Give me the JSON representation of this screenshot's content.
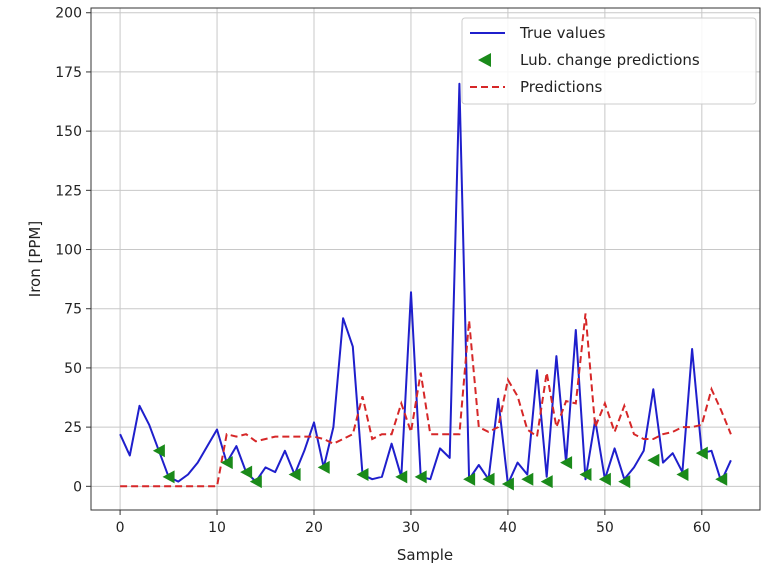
{
  "chart_data": {
    "type": "line",
    "title": "",
    "xlabel": "Sample",
    "ylabel": "Iron [PPM]",
    "xlim": [
      -3,
      66
    ],
    "ylim": [
      -10,
      202
    ],
    "xticks": [
      0,
      10,
      20,
      30,
      40,
      50,
      60
    ],
    "yticks": [
      0,
      25,
      50,
      75,
      100,
      125,
      150,
      175,
      200
    ],
    "grid": true,
    "legend_position": "top-right",
    "series": [
      {
        "name": "True values",
        "style": "solid",
        "color": "#1f1fcc",
        "x": [
          0,
          1,
          2,
          3,
          4,
          5,
          6,
          7,
          8,
          9,
          10,
          11,
          12,
          13,
          14,
          15,
          16,
          17,
          18,
          19,
          20,
          21,
          22,
          23,
          24,
          25,
          26,
          27,
          28,
          29,
          30,
          31,
          32,
          33,
          34,
          35,
          36,
          37,
          38,
          39,
          40,
          41,
          42,
          43,
          44,
          45,
          46,
          47,
          48,
          49,
          50,
          51,
          52,
          53,
          54,
          55,
          56,
          57,
          58,
          59,
          60,
          61,
          62,
          63
        ],
        "values": [
          22,
          13,
          34,
          26,
          15,
          4,
          2,
          5,
          10,
          17,
          24,
          10,
          17,
          6,
          2,
          8,
          6,
          15,
          5,
          15,
          27,
          8,
          25,
          71,
          59,
          5,
          3,
          4,
          18,
          4,
          82,
          4,
          3,
          16,
          12,
          170,
          3,
          9,
          3,
          37,
          1,
          10,
          5,
          49,
          4,
          55,
          10,
          66,
          3,
          28,
          3,
          16,
          3,
          8,
          15,
          41,
          10,
          14,
          6,
          58,
          14,
          15,
          2,
          11
        ]
      },
      {
        "name": "Lub. change predictions",
        "style": "marker",
        "color": "#1a8a1a",
        "x": [
          4,
          5,
          11,
          13,
          14,
          18,
          21,
          25,
          29,
          31,
          36,
          38,
          40,
          42,
          44,
          46,
          48,
          50,
          52,
          55,
          58,
          60,
          62
        ],
        "values": [
          15,
          4,
          10,
          6,
          2,
          5,
          8,
          5,
          4,
          4,
          3,
          3,
          1,
          3,
          2,
          10,
          5,
          3,
          2,
          11,
          5,
          14,
          3
        ]
      },
      {
        "name": "Predictions",
        "style": "dashed",
        "color": "#d62728",
        "x": [
          0,
          1,
          2,
          3,
          4,
          5,
          6,
          7,
          8,
          9,
          10,
          11,
          12,
          13,
          14,
          15,
          16,
          17,
          18,
          19,
          20,
          21,
          22,
          23,
          24,
          25,
          26,
          27,
          28,
          29,
          30,
          31,
          32,
          33,
          34,
          35,
          36,
          37,
          38,
          39,
          40,
          41,
          42,
          43,
          44,
          45,
          46,
          47,
          48,
          49,
          50,
          51,
          52,
          53,
          54,
          55,
          56,
          57,
          58,
          59,
          60,
          61,
          62,
          63
        ],
        "values": [
          0,
          0,
          0,
          0,
          0,
          0,
          0,
          0,
          0,
          0,
          0,
          22,
          21,
          22,
          19,
          20,
          21,
          21,
          21,
          21,
          21,
          20,
          18,
          20,
          22,
          38,
          20,
          22,
          22,
          35,
          23,
          48,
          22,
          22,
          22,
          22,
          70,
          25,
          23,
          25,
          45,
          38,
          24,
          21,
          48,
          25,
          36,
          35,
          73,
          25,
          35,
          23,
          34,
          22,
          20,
          20,
          22,
          23,
          25,
          25,
          26,
          41,
          32,
          22
        ]
      }
    ]
  }
}
